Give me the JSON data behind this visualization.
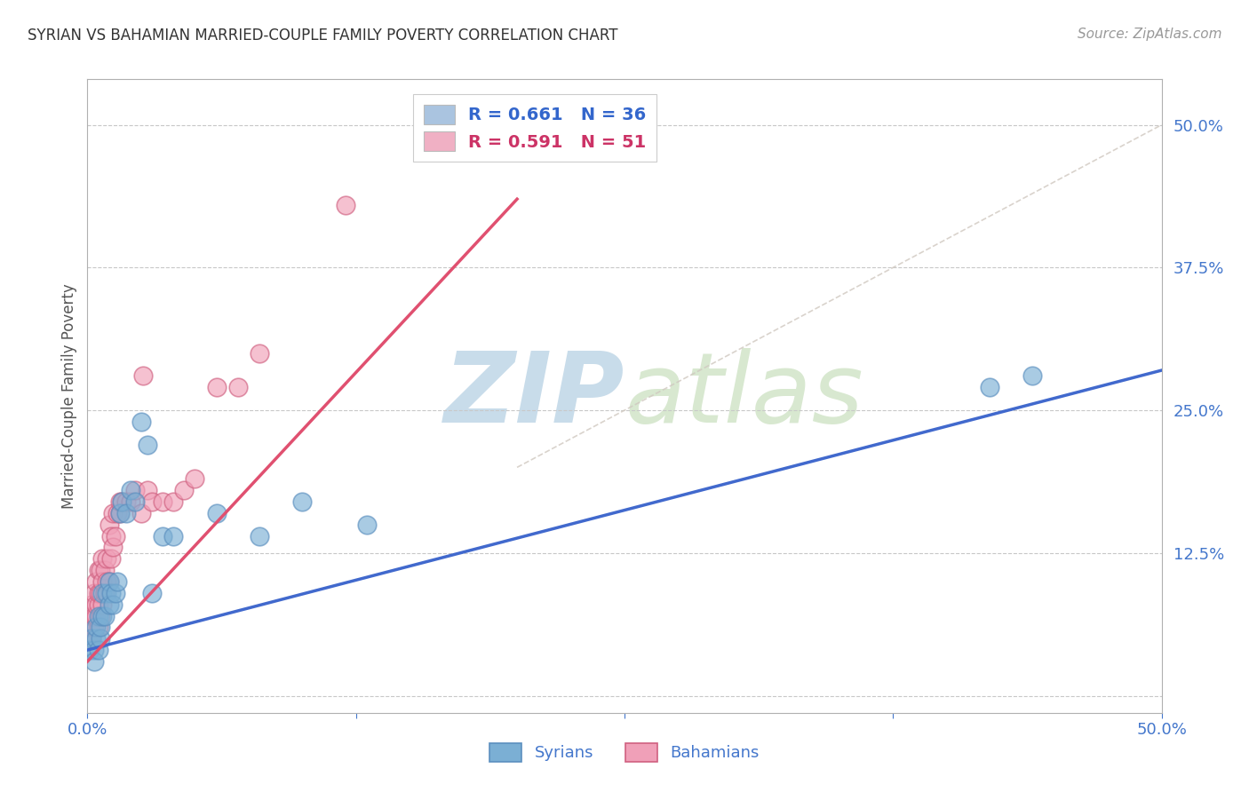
{
  "title": "SYRIAN VS BAHAMIAN MARRIED-COUPLE FAMILY POVERTY CORRELATION CHART",
  "source": "Source: ZipAtlas.com",
  "ylabel": "Married-Couple Family Poverty",
  "xlim": [
    0.0,
    0.5
  ],
  "ylim": [
    -0.015,
    0.54
  ],
  "xticks": [
    0.0,
    0.125,
    0.25,
    0.375,
    0.5
  ],
  "xticklabels": [
    "0.0%",
    "",
    "",
    "",
    "50.0%"
  ],
  "ytick_positions": [
    0.0,
    0.125,
    0.25,
    0.375,
    0.5
  ],
  "ytick_labels_right": [
    "",
    "12.5%",
    "25.0%",
    "37.5%",
    "50.0%"
  ],
  "watermark_zip": "ZIP",
  "watermark_atlas": "atlas",
  "legend_items": [
    {
      "label": "R = 0.661   N = 36",
      "color": "#aac4e0",
      "text_color": "#3366cc"
    },
    {
      "label": "R = 0.591   N = 51",
      "color": "#f0b0c4",
      "text_color": "#cc3366"
    }
  ],
  "syrians_color": "#7bafd4",
  "syrians_edge": "#5b8fbf",
  "bahamians_color": "#f0a0b8",
  "bahamians_edge": "#d06080",
  "regression_syrian_color": "#4169CD",
  "regression_bahamian_color": "#E05070",
  "regression_dashed_color": "#d0c8c0",
  "background_color": "#ffffff",
  "grid_color": "#c8c8c8",
  "syrian_line_x": [
    0.0,
    0.5
  ],
  "syrian_line_y": [
    0.04,
    0.285
  ],
  "bahamian_line_x": [
    0.0,
    0.2
  ],
  "bahamian_line_y": [
    0.03,
    0.435
  ],
  "dashed_line_x": [
    0.2,
    0.5
  ],
  "dashed_line_y": [
    0.2,
    0.5
  ],
  "syrians_x": [
    0.001,
    0.002,
    0.003,
    0.003,
    0.004,
    0.004,
    0.005,
    0.005,
    0.006,
    0.006,
    0.007,
    0.007,
    0.008,
    0.009,
    0.01,
    0.01,
    0.011,
    0.012,
    0.013,
    0.014,
    0.015,
    0.016,
    0.018,
    0.02,
    0.022,
    0.025,
    0.028,
    0.03,
    0.035,
    0.04,
    0.06,
    0.08,
    0.1,
    0.13,
    0.42,
    0.44
  ],
  "syrians_y": [
    0.04,
    0.05,
    0.04,
    0.03,
    0.05,
    0.06,
    0.04,
    0.07,
    0.05,
    0.06,
    0.07,
    0.09,
    0.07,
    0.09,
    0.08,
    0.1,
    0.09,
    0.08,
    0.09,
    0.1,
    0.16,
    0.17,
    0.16,
    0.18,
    0.17,
    0.24,
    0.22,
    0.09,
    0.14,
    0.14,
    0.16,
    0.14,
    0.17,
    0.15,
    0.27,
    0.28
  ],
  "bahamians_x": [
    0.001,
    0.001,
    0.002,
    0.002,
    0.002,
    0.003,
    0.003,
    0.003,
    0.004,
    0.004,
    0.004,
    0.005,
    0.005,
    0.005,
    0.005,
    0.006,
    0.006,
    0.006,
    0.007,
    0.007,
    0.007,
    0.008,
    0.008,
    0.009,
    0.009,
    0.01,
    0.01,
    0.011,
    0.011,
    0.012,
    0.012,
    0.013,
    0.014,
    0.015,
    0.015,
    0.016,
    0.018,
    0.02,
    0.022,
    0.025,
    0.026,
    0.028,
    0.03,
    0.035,
    0.04,
    0.045,
    0.05,
    0.06,
    0.07,
    0.08,
    0.12
  ],
  "bahamians_y": [
    0.05,
    0.06,
    0.05,
    0.07,
    0.08,
    0.06,
    0.07,
    0.09,
    0.07,
    0.08,
    0.1,
    0.06,
    0.08,
    0.09,
    0.11,
    0.07,
    0.09,
    0.11,
    0.08,
    0.1,
    0.12,
    0.09,
    0.11,
    0.1,
    0.12,
    0.1,
    0.15,
    0.12,
    0.14,
    0.13,
    0.16,
    0.14,
    0.16,
    0.16,
    0.17,
    0.17,
    0.17,
    0.17,
    0.18,
    0.16,
    0.28,
    0.18,
    0.17,
    0.17,
    0.17,
    0.18,
    0.19,
    0.27,
    0.27,
    0.3,
    0.43
  ]
}
